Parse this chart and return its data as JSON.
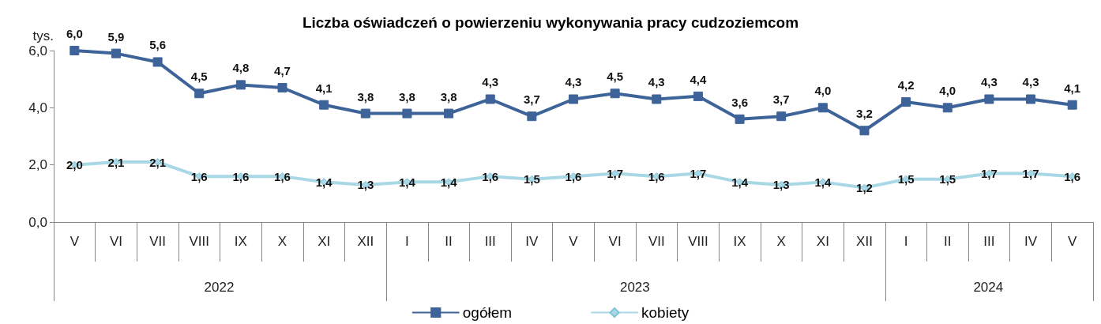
{
  "chart_data": {
    "type": "line",
    "title": "Liczba oświadczeń o powierzeniu wykonywania pracy cudzoziemcom",
    "ylabel": "tys.",
    "categories": [
      "V",
      "VI",
      "VII",
      "VIII",
      "IX",
      "X",
      "XI",
      "XII",
      "I",
      "II",
      "III",
      "IV",
      "V",
      "VI",
      "VII",
      "VIII",
      "IX",
      "X",
      "XI",
      "XII",
      "I",
      "II",
      "III",
      "IV",
      "V"
    ],
    "annotations": [
      "2022",
      "2023",
      "2024"
    ],
    "series": [
      {
        "name": "ogółem",
        "color": "#3d6399",
        "marker": "square",
        "values": [
          6.0,
          5.9,
          5.6,
          4.5,
          4.8,
          4.7,
          4.1,
          3.8,
          3.8,
          3.8,
          4.3,
          3.7,
          4.3,
          4.5,
          4.3,
          4.4,
          3.6,
          3.7,
          4.0,
          3.2,
          4.2,
          4.0,
          4.3,
          4.3,
          4.1
        ],
        "value_labels": [
          "6,0",
          "5,9",
          "5,6",
          "4,5",
          "4,8",
          "4,7",
          "4,1",
          "3,8",
          "3,8",
          "3,8",
          "4,3",
          "3,7",
          "4,3",
          "4,5",
          "4,3",
          "4,4",
          "3,6",
          "3,7",
          "4,0",
          "3,2",
          "4,2",
          "4,0",
          "4,3",
          "4,3",
          "4,1"
        ]
      },
      {
        "name": "kobiety",
        "color": "#a8d8e6",
        "marker": "diamond",
        "values": [
          2.0,
          2.1,
          2.1,
          1.6,
          1.6,
          1.6,
          1.4,
          1.3,
          1.4,
          1.4,
          1.6,
          1.5,
          1.6,
          1.7,
          1.6,
          1.7,
          1.4,
          1.3,
          1.4,
          1.2,
          1.5,
          1.5,
          1.7,
          1.7,
          1.6
        ],
        "value_labels": [
          "2,0",
          "2,1",
          "2,1",
          "1,6",
          "1,6",
          "1,6",
          "1,4",
          "1,3",
          "1,4",
          "1,4",
          "1,6",
          "1,5",
          "1,6",
          "1,7",
          "1,6",
          "1,7",
          "1,4",
          "1,3",
          "1,4",
          "1,2",
          "1,5",
          "1,5",
          "1,7",
          "1,7",
          "1,6"
        ]
      }
    ],
    "ylim": [
      0,
      6
    ],
    "yticks": [
      {
        "value": 0,
        "label": "0,0"
      },
      {
        "value": 2,
        "label": "2,0"
      },
      {
        "value": 4,
        "label": "4,0"
      },
      {
        "value": 6,
        "label": "6,0"
      }
    ],
    "grid": false,
    "legend": "bottom",
    "line_style": "solid"
  }
}
